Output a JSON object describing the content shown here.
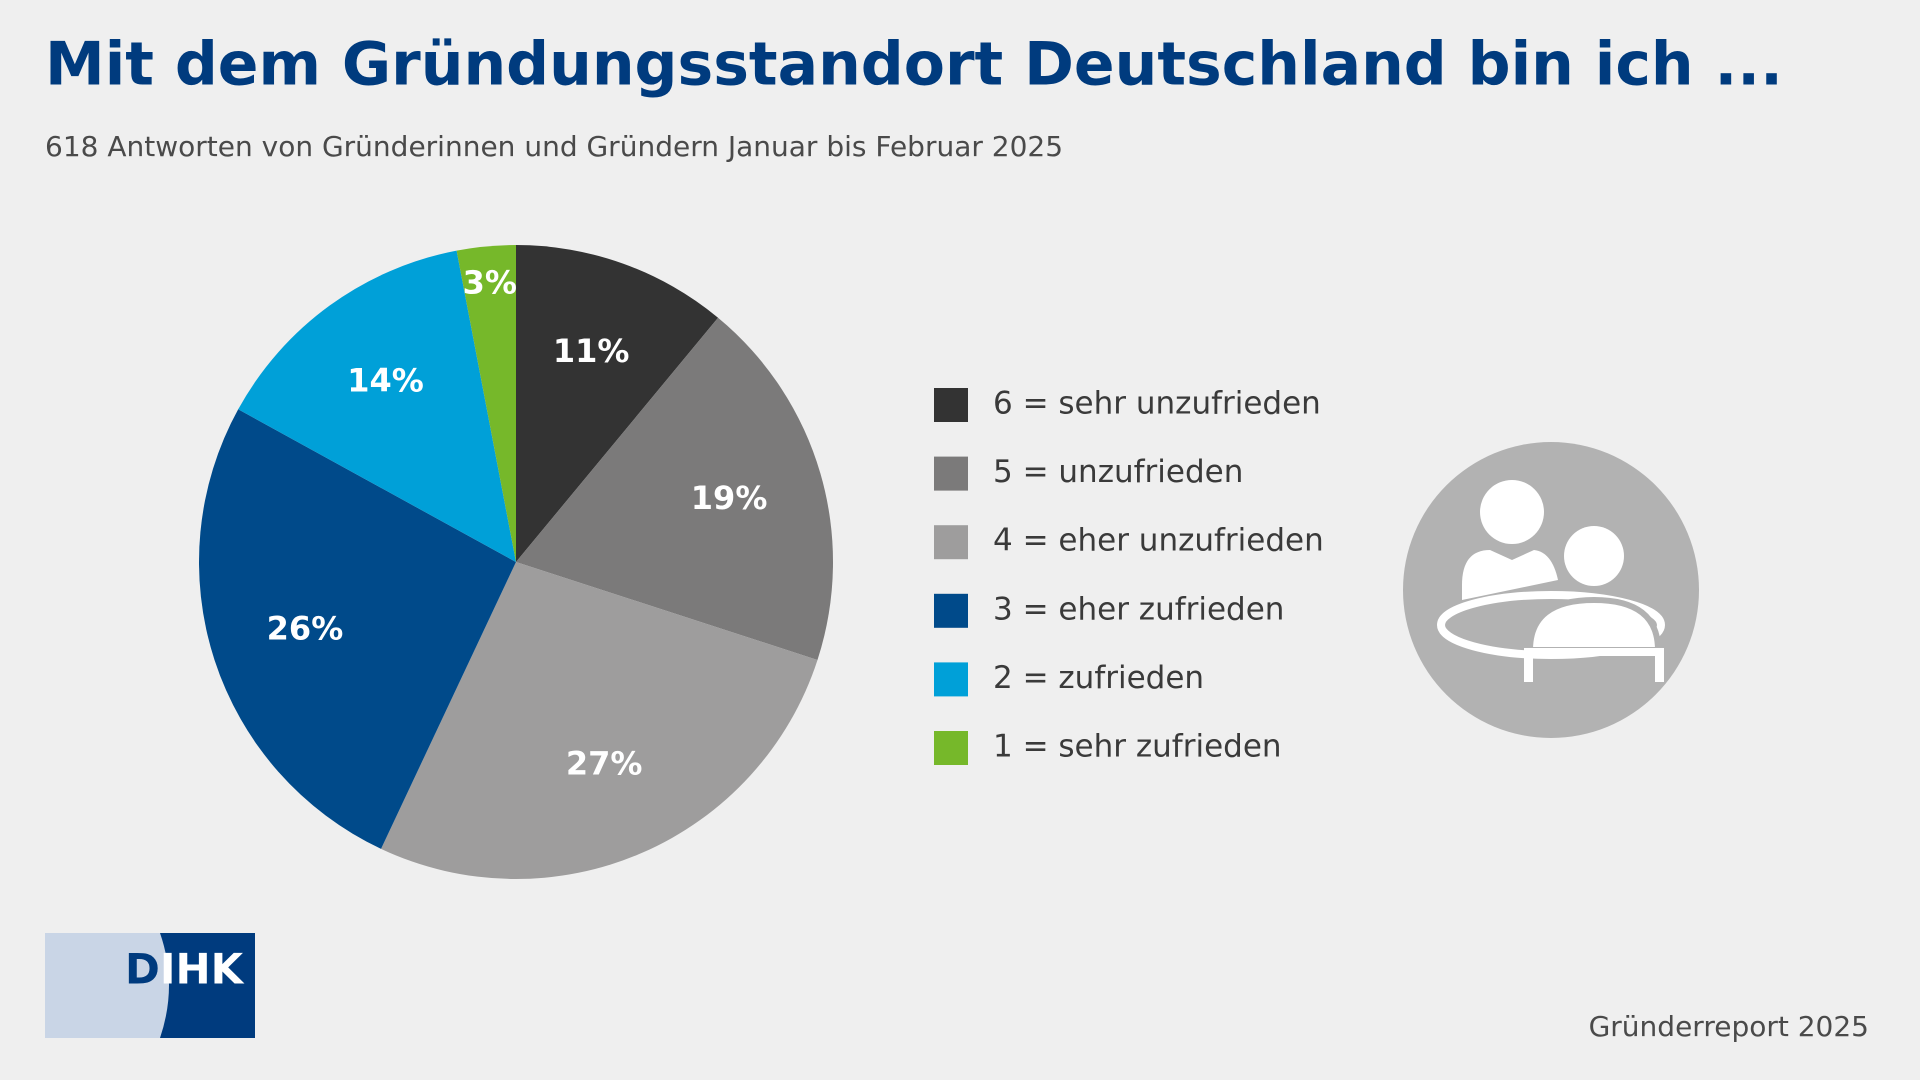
{
  "chart_data": {
    "type": "pie",
    "title": "Mit dem Gründungsstandort Deutschland bin ich ...",
    "subtitle": "618 Antworten von Gründerinnen und Gründern Januar bis Februar 2025",
    "categories": [
      "6 = sehr unzufrieden",
      "5 = unzufrieden",
      "4 = eher unzufrieden",
      "3 = eher zufrieden",
      "2 = zufrieden",
      "1 = sehr zufrieden"
    ],
    "values": [
      11,
      19,
      27,
      26,
      14,
      3
    ],
    "value_labels": [
      "11%",
      "19%",
      "27%",
      "26%",
      "14%",
      "3%"
    ],
    "colors": [
      "#333333",
      "#7b7a7a",
      "#9e9d9d",
      "#004a8a",
      "#00a0d8",
      "#76b82a"
    ],
    "legend": "right"
  },
  "logo": "DIHK",
  "source": "Gründerreport 2025"
}
